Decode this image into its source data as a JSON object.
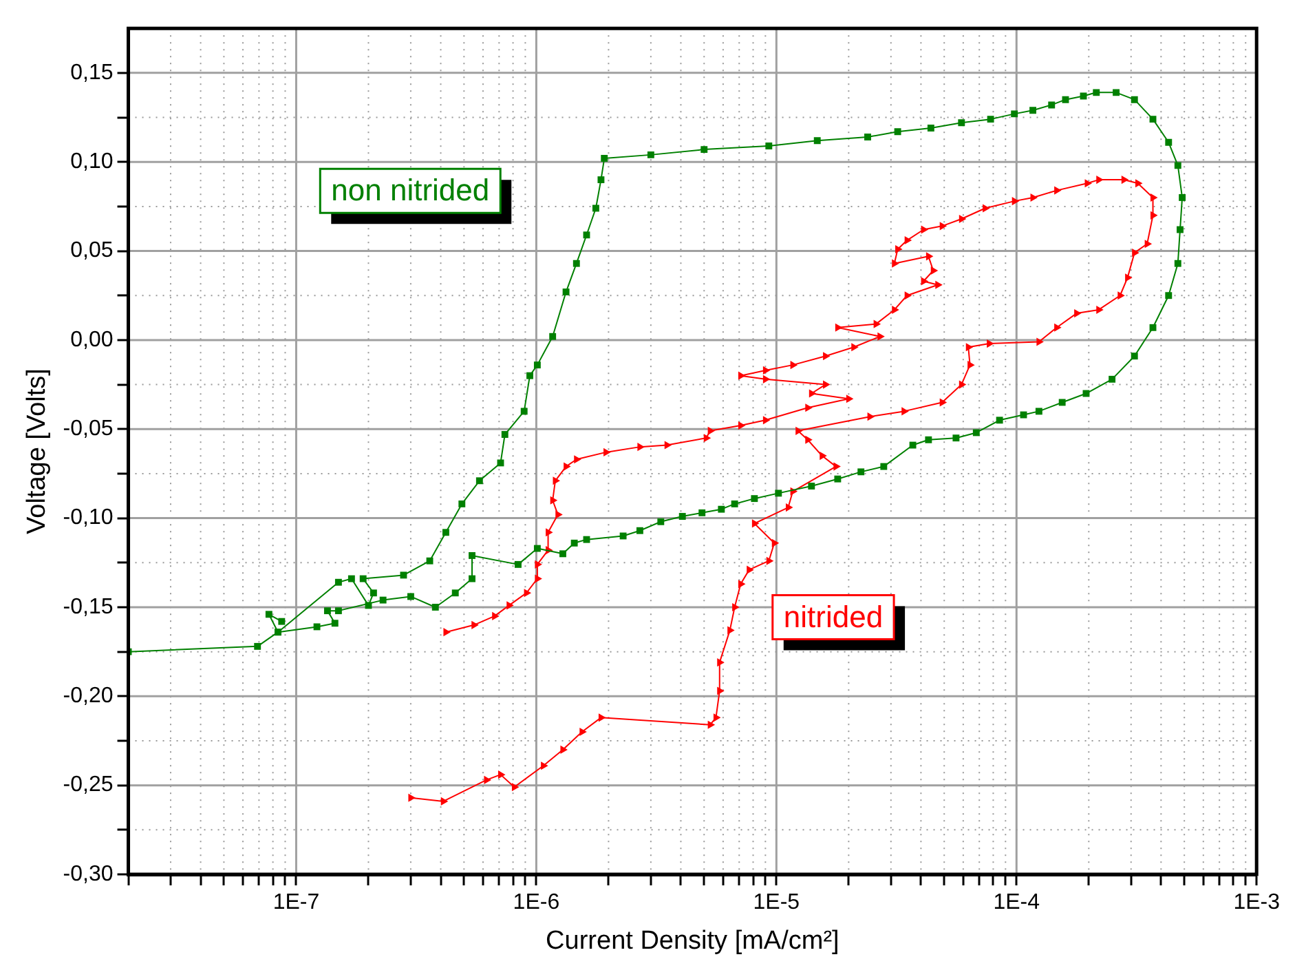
{
  "chart_data": {
    "type": "line",
    "xlabel": "Current Density [mA/cm²]",
    "ylabel": "Voltage [Volts]",
    "log": "x",
    "grid": true,
    "legend": false,
    "xlim": [
      2e-08,
      0.001
    ],
    "ylim": [
      -0.3,
      0.175
    ],
    "xticks": [
      {
        "value": 2e-08,
        "label": null
      },
      {
        "value": 3e-08,
        "label": null
      },
      {
        "value": 4e-08,
        "label": null
      },
      {
        "value": 5e-08,
        "label": null
      },
      {
        "value": 6e-08,
        "label": null
      },
      {
        "value": 7e-08,
        "label": null
      },
      {
        "value": 8e-08,
        "label": null
      },
      {
        "value": 9e-08,
        "label": null
      },
      {
        "value": 1e-07,
        "label": "1E-7"
      },
      {
        "value": 2e-07,
        "label": null
      },
      {
        "value": 3e-07,
        "label": null
      },
      {
        "value": 4e-07,
        "label": null
      },
      {
        "value": 5e-07,
        "label": null
      },
      {
        "value": 6e-07,
        "label": null
      },
      {
        "value": 7e-07,
        "label": null
      },
      {
        "value": 8e-07,
        "label": null
      },
      {
        "value": 9e-07,
        "label": null
      },
      {
        "value": 1e-06,
        "label": "1E-6"
      },
      {
        "value": 2e-06,
        "label": null
      },
      {
        "value": 3e-06,
        "label": null
      },
      {
        "value": 4e-06,
        "label": null
      },
      {
        "value": 5e-06,
        "label": null
      },
      {
        "value": 6e-06,
        "label": null
      },
      {
        "value": 7e-06,
        "label": null
      },
      {
        "value": 8e-06,
        "label": null
      },
      {
        "value": 9e-06,
        "label": null
      },
      {
        "value": 1e-05,
        "label": "1E-5"
      },
      {
        "value": 2e-05,
        "label": null
      },
      {
        "value": 3e-05,
        "label": null
      },
      {
        "value": 4e-05,
        "label": null
      },
      {
        "value": 5e-05,
        "label": null
      },
      {
        "value": 6e-05,
        "label": null
      },
      {
        "value": 7e-05,
        "label": null
      },
      {
        "value": 8e-05,
        "label": null
      },
      {
        "value": 9e-05,
        "label": null
      },
      {
        "value": 0.0001,
        "label": "1E-4"
      },
      {
        "value": 0.0002,
        "label": null
      },
      {
        "value": 0.0003,
        "label": null
      },
      {
        "value": 0.0004,
        "label": null
      },
      {
        "value": 0.0005,
        "label": null
      },
      {
        "value": 0.0006,
        "label": null
      },
      {
        "value": 0.0007,
        "label": null
      },
      {
        "value": 0.0008,
        "label": null
      },
      {
        "value": 0.0009,
        "label": null
      },
      {
        "value": 0.001,
        "label": "1E-3"
      }
    ],
    "yticks": [
      {
        "value": -0.3,
        "label": "-0,30"
      },
      {
        "value": -0.275,
        "label": null
      },
      {
        "value": -0.25,
        "label": "-0,25"
      },
      {
        "value": -0.225,
        "label": null
      },
      {
        "value": -0.2,
        "label": "-0,20"
      },
      {
        "value": -0.175,
        "label": null
      },
      {
        "value": -0.15,
        "label": "-0,15"
      },
      {
        "value": -0.125,
        "label": null
      },
      {
        "value": -0.1,
        "label": "-0,10"
      },
      {
        "value": -0.075,
        "label": null
      },
      {
        "value": -0.05,
        "label": "-0,05"
      },
      {
        "value": -0.025,
        "label": null
      },
      {
        "value": 0,
        "label": "0,00"
      },
      {
        "value": 0.025,
        "label": null
      },
      {
        "value": 0.05,
        "label": "0,05"
      },
      {
        "value": 0.075,
        "label": null
      },
      {
        "value": 0.1,
        "label": "0,10"
      },
      {
        "value": 0.125,
        "label": null
      },
      {
        "value": 0.15,
        "label": "0,15"
      }
    ],
    "series": [
      {
        "name": "non nitrided",
        "color": "#008000",
        "marker": "square",
        "x": [
          2e-08,
          6.9e-08,
          8.4e-08,
          1.5e-07,
          1.7e-07,
          2e-07,
          2.1e-07,
          1.9e-07,
          2.8e-07,
          3.6e-07,
          4.2e-07,
          4.9e-07,
          5.8e-07,
          7.1e-07,
          7.4e-07,
          8.9e-07,
          9.4e-07,
          1.01e-06,
          1.17e-06,
          1.33e-06,
          1.47e-06,
          1.62e-06,
          1.77e-06,
          1.86e-06,
          1.92e-06,
          3e-06,
          5e-06,
          9.3e-06,
          1.48e-05,
          2.4e-05,
          3.2e-05,
          4.4e-05,
          5.9e-05,
          7.8e-05,
          9.8e-05,
          0.000117,
          0.00014,
          0.00016,
          0.00019,
          0.000215,
          0.00026,
          0.00031,
          0.00037,
          0.00043,
          0.00047,
          0.00049,
          0.00048,
          0.00047,
          0.00043,
          0.00037,
          0.00031,
          0.00025,
          0.000195,
          0.000155,
          0.000124,
          0.000107,
          8.5e-05,
          6.8e-05,
          5.6e-05,
          4.3e-05,
          3.7e-05,
          2.8e-05,
          2.25e-05,
          1.8e-05,
          1.4e-05,
          1.02e-05,
          8.1e-06,
          6.7e-06,
          5.9e-06,
          4.9e-06,
          4.06e-06,
          3.3e-06,
          2.7e-06,
          2.3e-06,
          1.62e-06,
          1.44e-06,
          1.29e-06,
          1.01e-06,
          8.4e-07,
          5.4e-07,
          5.4e-07,
          4.6e-07,
          3.8e-07,
          3e-07,
          2.3e-07,
          1.5e-07,
          1.35e-07,
          1.45e-07,
          1.22e-07,
          8.4e-08,
          7.7e-08,
          8.7e-08
        ],
        "values": [
          -0.175,
          -0.172,
          -0.164,
          -0.136,
          -0.134,
          -0.149,
          -0.142,
          -0.134,
          -0.132,
          -0.124,
          -0.108,
          -0.092,
          -0.079,
          -0.069,
          -0.053,
          -0.04,
          -0.02,
          -0.014,
          0.002,
          0.027,
          0.043,
          0.059,
          0.074,
          0.09,
          0.102,
          0.104,
          0.107,
          0.109,
          0.112,
          0.114,
          0.117,
          0.119,
          0.122,
          0.124,
          0.127,
          0.129,
          0.132,
          0.135,
          0.137,
          0.139,
          0.139,
          0.135,
          0.124,
          0.111,
          0.098,
          0.08,
          0.062,
          0.043,
          0.025,
          0.007,
          -0.009,
          -0.022,
          -0.03,
          -0.035,
          -0.04,
          -0.042,
          -0.045,
          -0.052,
          -0.055,
          -0.056,
          -0.059,
          -0.071,
          -0.074,
          -0.078,
          -0.082,
          -0.086,
          -0.089,
          -0.092,
          -0.095,
          -0.097,
          -0.099,
          -0.102,
          -0.107,
          -0.11,
          -0.112,
          -0.114,
          -0.12,
          -0.117,
          -0.126,
          -0.121,
          -0.134,
          -0.142,
          -0.15,
          -0.144,
          -0.146,
          -0.152,
          -0.152,
          -0.159,
          -0.161,
          -0.164,
          -0.154,
          -0.158
        ]
      },
      {
        "name": "nitrided",
        "color": "#ff0000",
        "marker": "triangle",
        "x": [
          3e-07,
          4.1e-07,
          6.2e-07,
          7.1e-07,
          8.1e-07,
          1.07e-06,
          1.29e-06,
          1.55e-06,
          1.86e-06,
          5.3e-06,
          5.6e-06,
          5.8e-06,
          5.8e-06,
          6.4e-06,
          6.7e-06,
          7.1e-06,
          7.7e-06,
          9.3e-06,
          9.8e-06,
          8.1e-06,
          1.12e-05,
          1.17e-05,
          1.77e-05,
          1.55e-05,
          1.35e-05,
          1.23e-05,
          2.45e-05,
          3.4e-05,
          4.9e-05,
          5.9e-05,
          6.4e-05,
          6.3e-05,
          7.7e-05,
          0.000124,
          0.000147,
          0.000178,
          0.00022,
          0.00027,
          0.00029,
          0.00031,
          0.00035,
          0.00037,
          0.00037,
          0.00032,
          0.00028,
          0.00022,
          0.000197,
          0.000147,
          0.000117,
          9.8e-05,
          7.4e-05,
          5.9e-05,
          4.9e-05,
          4.1e-05,
          3.5e-05,
          3.2e-05,
          3.1e-05,
          4.3e-05,
          4.5e-05,
          4.1e-05,
          4.7e-05,
          3.5e-05,
          3.1e-05,
          2.6e-05,
          1.8e-05,
          2.7e-05,
          2.1e-05,
          1.6e-05,
          1.17e-05,
          9e-06,
          7.1e-06,
          9e-06,
          1.6e-05,
          1.4e-05,
          2e-05,
          1.35e-05,
          9e-06,
          7.1e-06,
          5.3e-06,
          5.1e-06,
          3.5e-06,
          2.7e-06,
          1.95e-06,
          1.47e-06,
          1.33e-06,
          1.2e-06,
          1.17e-06,
          1.23e-06,
          1.12e-06,
          1.12e-06,
          1.01e-06,
          1.01e-06,
          9.1e-07,
          7.7e-07,
          6.7e-07,
          5.5e-07,
          4.2e-07
        ],
        "values": [
          -0.257,
          -0.259,
          -0.247,
          -0.244,
          -0.251,
          -0.239,
          -0.23,
          -0.22,
          -0.212,
          -0.216,
          -0.212,
          -0.197,
          -0.181,
          -0.163,
          -0.15,
          -0.137,
          -0.129,
          -0.124,
          -0.114,
          -0.103,
          -0.094,
          -0.085,
          -0.071,
          -0.065,
          -0.056,
          -0.051,
          -0.043,
          -0.04,
          -0.035,
          -0.025,
          -0.014,
          -0.004,
          -0.002,
          -0.001,
          0.007,
          0.015,
          0.017,
          0.025,
          0.035,
          0.049,
          0.054,
          0.07,
          0.08,
          0.088,
          0.09,
          0.09,
          0.088,
          0.084,
          0.08,
          0.078,
          0.074,
          0.068,
          0.064,
          0.062,
          0.056,
          0.051,
          0.043,
          0.047,
          0.039,
          0.033,
          0.031,
          0.025,
          0.017,
          0.009,
          0.007,
          0.002,
          -0.004,
          -0.009,
          -0.014,
          -0.017,
          -0.02,
          -0.022,
          -0.025,
          -0.03,
          -0.033,
          -0.038,
          -0.045,
          -0.048,
          -0.051,
          -0.055,
          -0.059,
          -0.06,
          -0.063,
          -0.067,
          -0.071,
          -0.079,
          -0.09,
          -0.098,
          -0.108,
          -0.118,
          -0.126,
          -0.134,
          -0.142,
          -0.149,
          -0.155,
          -0.16,
          -0.164
        ]
      }
    ]
  }
}
